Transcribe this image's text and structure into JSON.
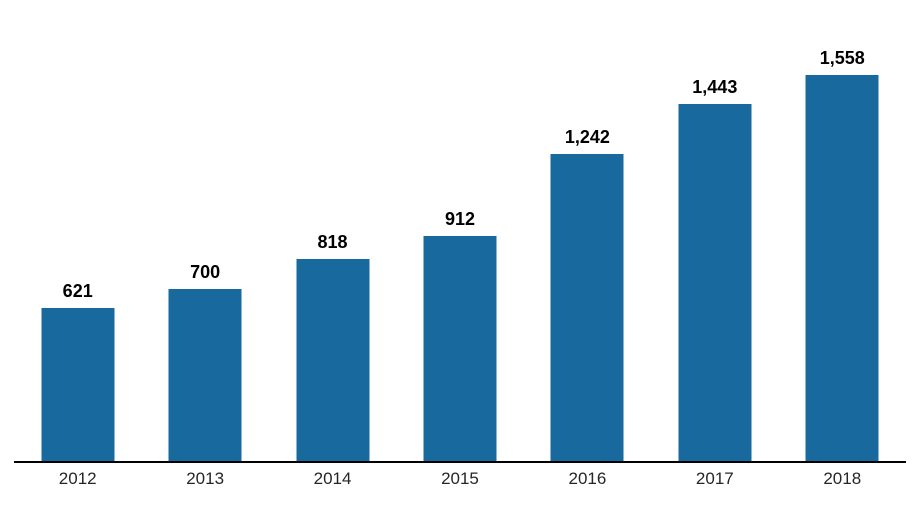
{
  "chart_data": {
    "type": "bar",
    "title": "",
    "xlabel": "",
    "ylabel": "",
    "categories": [
      "2012",
      "2013",
      "2014",
      "2015",
      "2016",
      "2017",
      "2018"
    ],
    "values": [
      621,
      700,
      818,
      912,
      1242,
      1443,
      1558
    ],
    "value_labels": [
      "621",
      "700",
      "818",
      "912",
      "1,242",
      "1,443",
      "1,558"
    ],
    "ylim": [
      0,
      1558
    ],
    "grid": false,
    "legend": false,
    "y_axis_visible": false,
    "x_axis_visible": true,
    "colors": {
      "bar": "#17699E",
      "value_label": "#000000",
      "tick_label": "#262626",
      "axis_line": "#000000",
      "background": "#FFFFFF"
    }
  }
}
